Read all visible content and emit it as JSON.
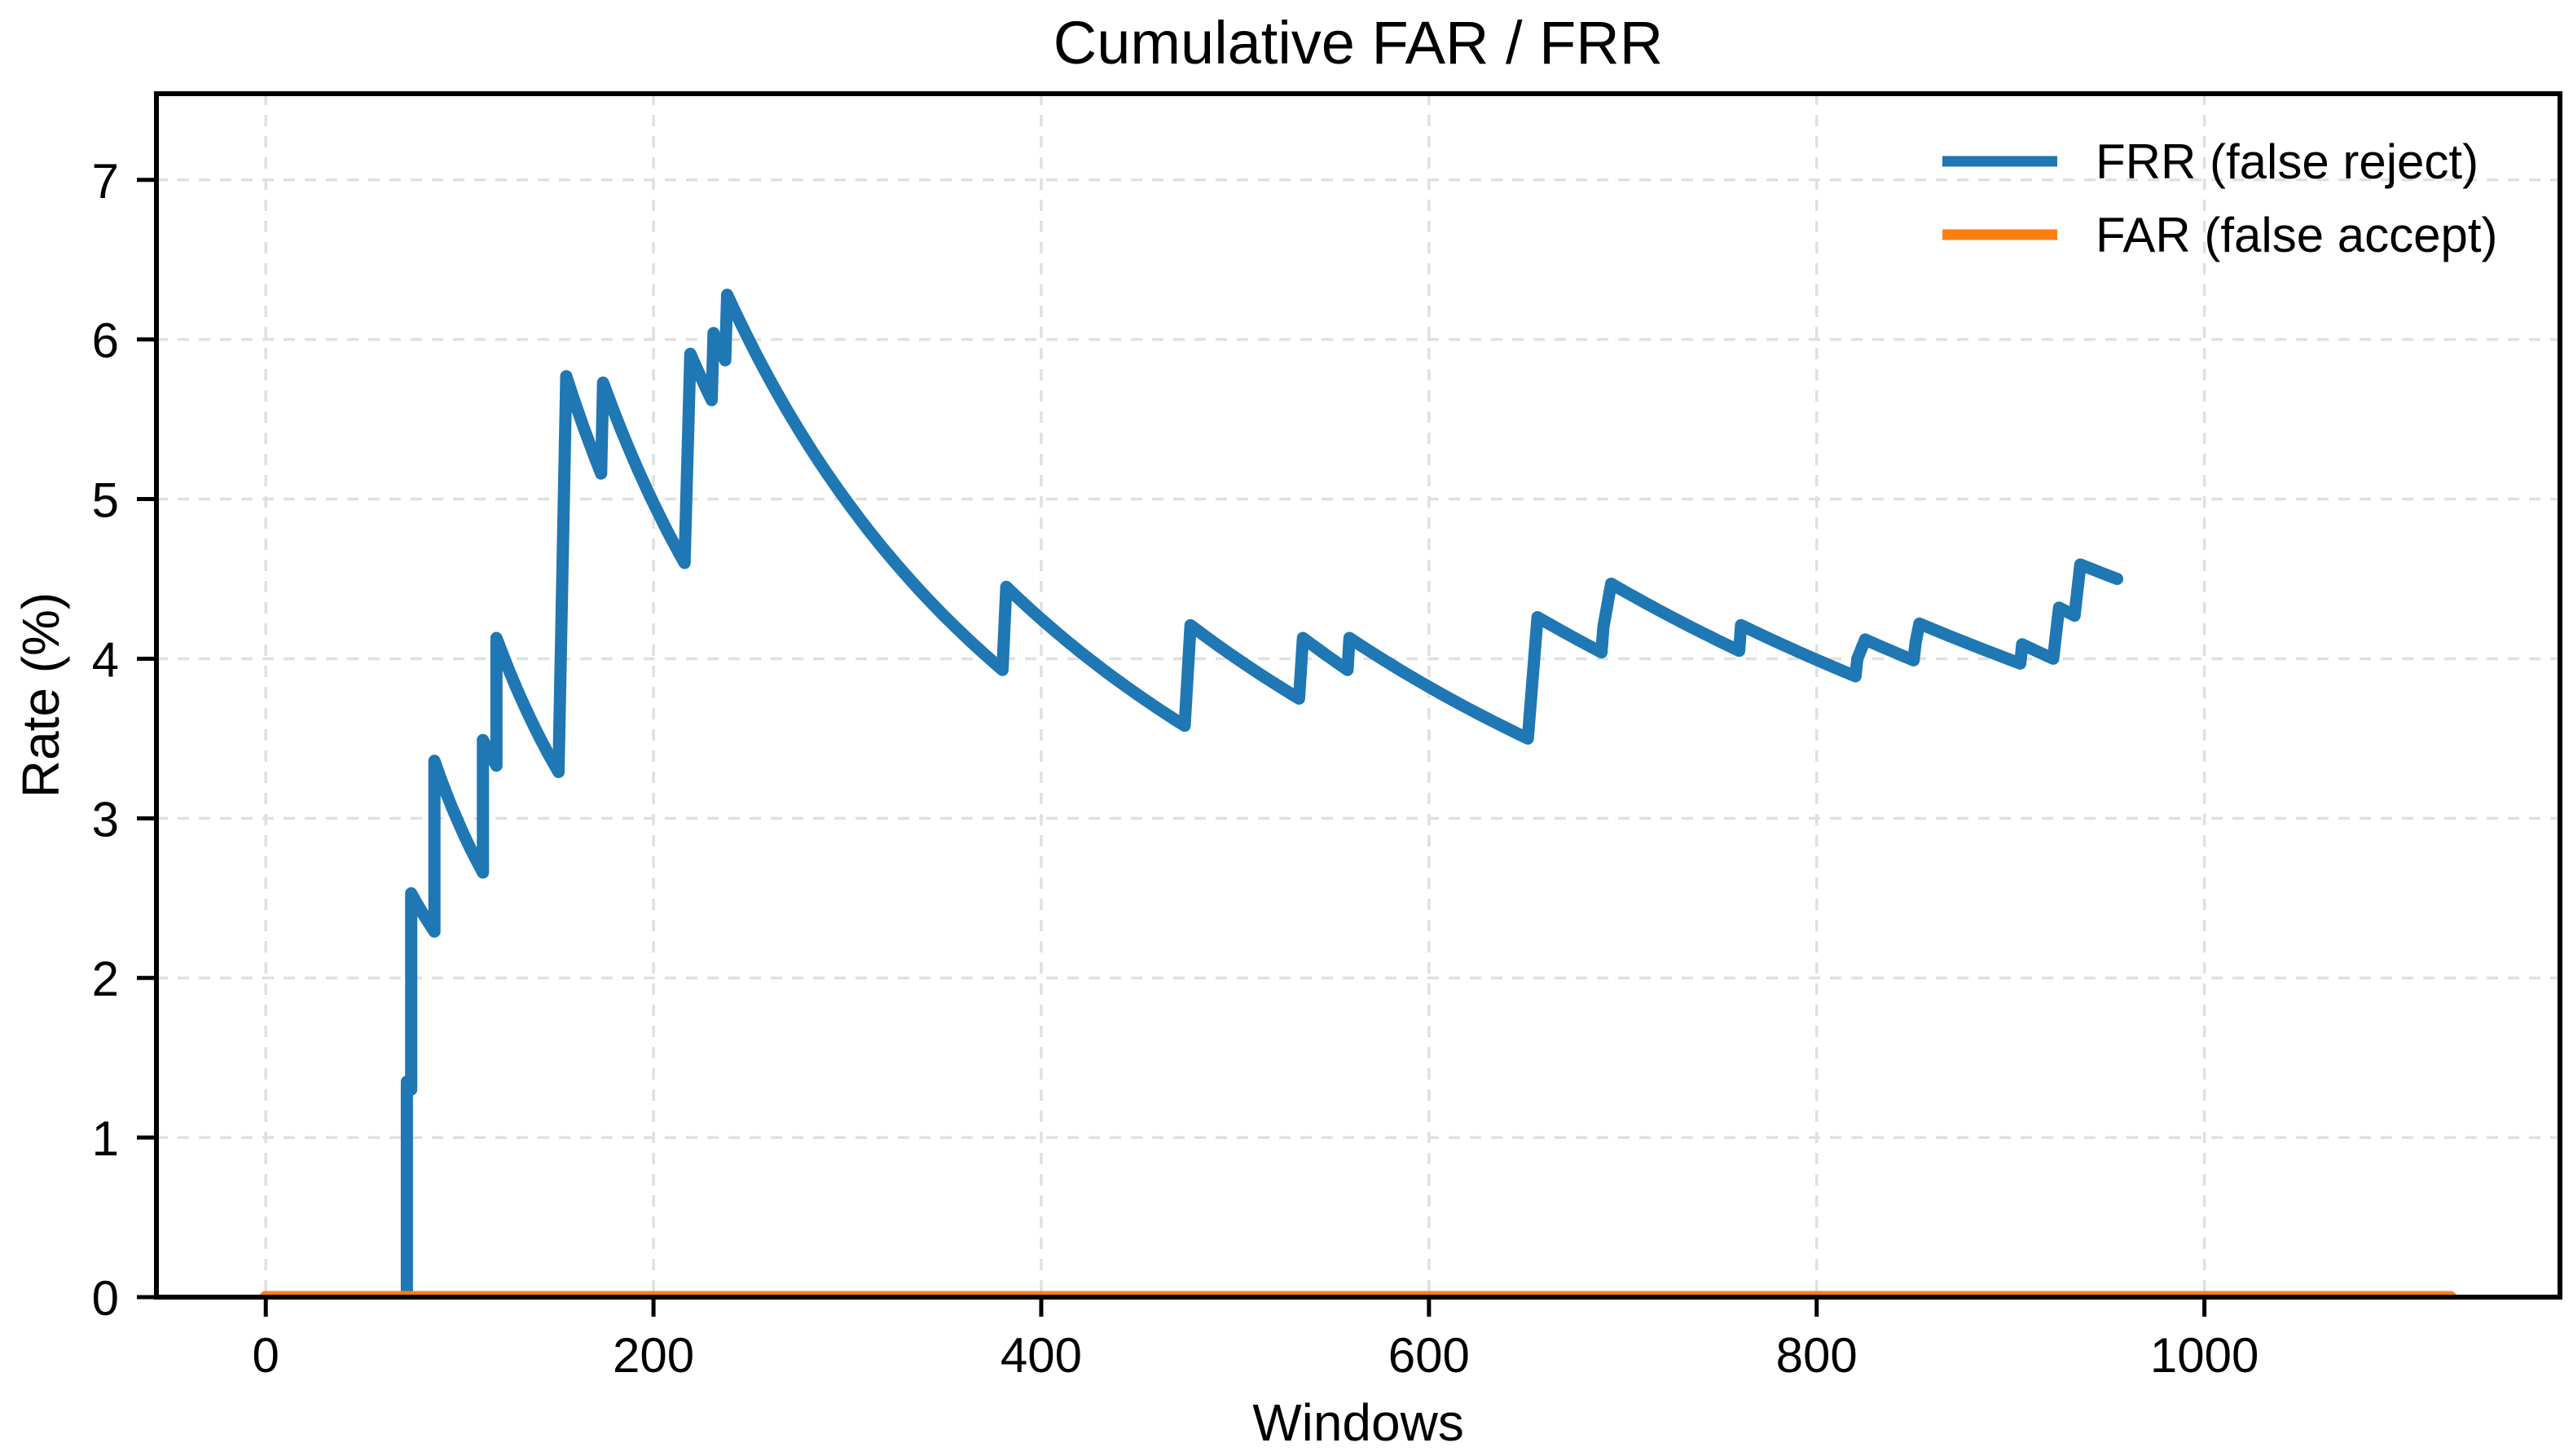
{
  "chart_data": {
    "type": "line",
    "title": "Cumulative FAR / FRR",
    "xlabel": "Windows",
    "ylabel": "Rate (%)",
    "xlim": [
      -56.4,
      1183.4
    ],
    "ylim": [
      0,
      7.54
    ],
    "xticks": [
      0,
      200,
      400,
      600,
      800,
      1000
    ],
    "xtick_labels": [
      "0",
      "200",
      "400",
      "600",
      "800",
      "1000"
    ],
    "yticks": [
      0,
      1,
      2,
      3,
      4,
      5,
      6,
      7
    ],
    "ytick_labels": [
      "0",
      "1",
      "2",
      "3",
      "4",
      "5",
      "6",
      "7"
    ],
    "grid": true,
    "grid_style": "dashed",
    "legend_position": "upper right",
    "series": [
      {
        "name": "FRR (false reject)",
        "color": "#1f77b4",
        "curve": "cumulative-hyperbolic",
        "note": "between a post-jump vertex and the next pre-jump vertex the value decays as k/n",
        "points": [
          [
            0,
            0
          ],
          [
            72.8,
            0
          ],
          [
            72.8,
            1.35
          ],
          [
            75,
            1.3
          ],
          [
            75,
            2.53
          ],
          [
            87,
            2.29
          ],
          [
            87,
            3.36
          ],
          [
            112,
            2.66
          ],
          [
            112,
            3.49
          ],
          [
            119,
            3.33
          ],
          [
            119,
            4.13
          ],
          [
            151,
            3.29
          ],
          [
            155,
            5.77
          ],
          [
            173,
            5.16
          ],
          [
            174,
            5.73
          ],
          [
            216,
            4.6
          ],
          [
            219,
            5.91
          ],
          [
            230,
            5.62
          ],
          [
            231,
            6.04
          ],
          [
            237,
            5.87
          ],
          [
            238,
            6.28
          ],
          [
            380,
            3.93
          ],
          [
            382,
            4.45
          ],
          [
            474,
            3.58
          ],
          [
            477,
            4.21
          ],
          [
            533,
            3.75
          ],
          [
            535,
            4.13
          ],
          [
            558,
            3.93
          ],
          [
            559,
            4.13
          ],
          [
            651,
            3.5
          ],
          [
            656,
            4.26
          ],
          [
            689,
            4.04
          ],
          [
            690,
            4.2
          ],
          [
            694,
            4.47
          ],
          [
            760,
            4.05
          ],
          [
            761,
            4.21
          ],
          [
            820,
            3.89
          ],
          [
            821,
            4.0
          ],
          [
            825,
            4.12
          ],
          [
            850,
            3.99
          ],
          [
            851,
            4.1
          ],
          [
            853,
            4.22
          ],
          [
            905,
            3.97
          ],
          [
            906,
            4.09
          ],
          [
            922,
            4.0
          ],
          [
            925,
            4.32
          ],
          [
            933,
            4.27
          ],
          [
            936,
            4.59
          ],
          [
            955,
            4.5
          ]
        ]
      },
      {
        "name": "FAR (false accept)",
        "color": "#ff7f0e",
        "curve": "linear",
        "points": [
          [
            0,
            0
          ],
          [
            1127,
            0
          ]
        ]
      }
    ]
  },
  "colors": {
    "frr": "#1f77b4",
    "far": "#ff7f0e",
    "grid": "#e0e0e0",
    "axis": "#000000"
  },
  "legend": {
    "items": [
      {
        "label": "FRR (false reject)",
        "color": "#1f77b4"
      },
      {
        "label": "FAR (false accept)",
        "color": "#ff7f0e"
      }
    ]
  }
}
